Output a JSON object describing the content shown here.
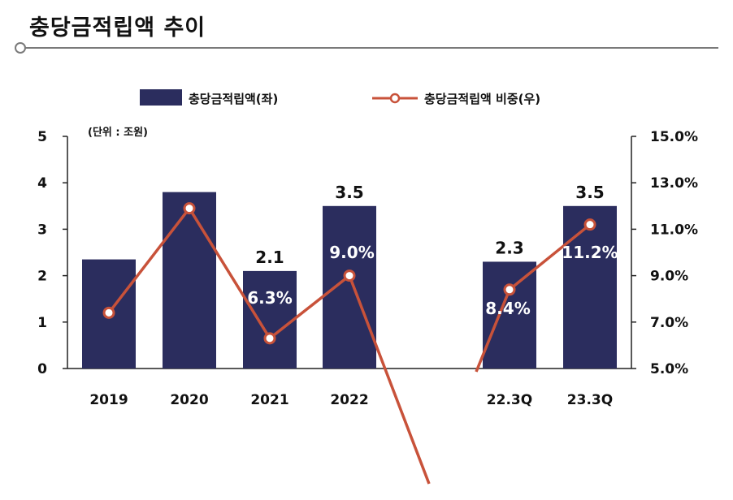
{
  "header": {
    "title": "충당금적립액 추이"
  },
  "chart_data": {
    "type": "bar",
    "unit_label": "(단위 : 조원)",
    "categories": [
      "2019",
      "2020",
      "2021",
      "2022",
      "22.3Q",
      "23.3Q"
    ],
    "series": [
      {
        "name": "충당금적립액(좌)",
        "axis": "left",
        "type": "bar",
        "values": [
          2.35,
          3.8,
          2.1,
          3.5,
          2.3,
          3.5
        ],
        "labels": [
          "",
          "",
          "2.1",
          "3.5",
          "2.3",
          "3.5"
        ],
        "color": "#2b2d5e"
      },
      {
        "name": "충당금적립액 비중(우)",
        "axis": "right",
        "type": "line",
        "values": [
          7.4,
          11.9,
          6.3,
          9.0,
          8.4,
          11.2
        ],
        "labels": [
          "",
          "",
          "6.3%",
          "9.0%",
          "8.4%",
          "11.2%"
        ],
        "color": "#c8523a"
      }
    ],
    "y_left": {
      "min": 0,
      "max": 5,
      "ticks": [
        "0",
        "1",
        "2",
        "3",
        "4",
        "5"
      ]
    },
    "y_right": {
      "min": 5.0,
      "max": 15.0,
      "ticks": [
        "5.0%",
        "7.0%",
        "9.0%",
        "11.0%",
        "13.0%",
        "15.0%"
      ]
    },
    "legend_position": "top-center"
  }
}
